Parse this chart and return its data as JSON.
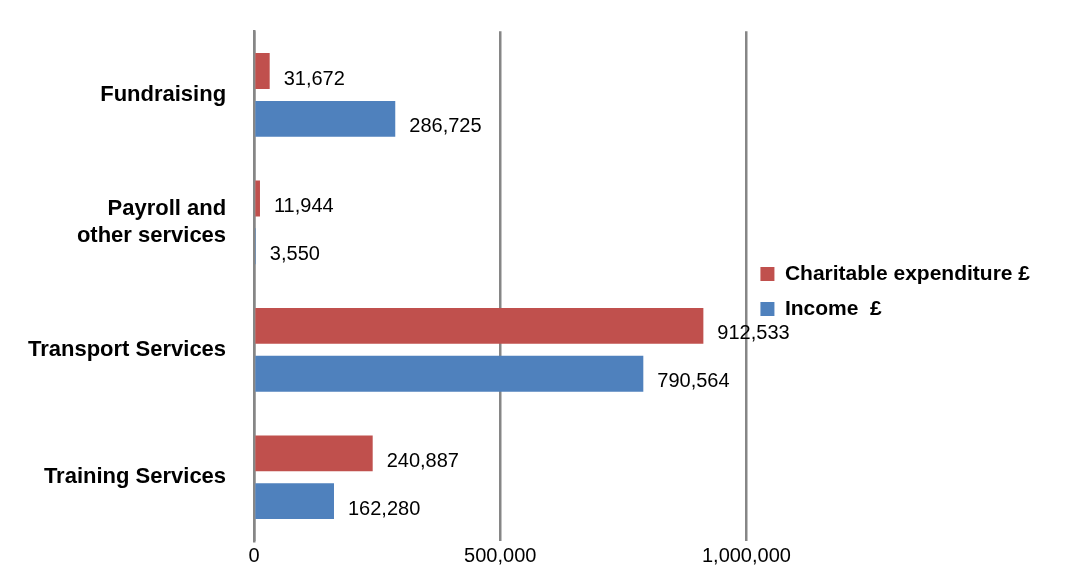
{
  "chart_data": {
    "type": "bar",
    "orientation": "horizontal",
    "categories": [
      "Fundraising",
      "Payroll and other services",
      "Transport Services",
      "Training Services"
    ],
    "series": [
      {
        "name": "Charitable expenditure £",
        "color": "#c0504d",
        "values": [
          31672,
          11944,
          912533,
          240887
        ],
        "value_labels": [
          "31,672",
          "11,944",
          "912,533",
          "240,887"
        ]
      },
      {
        "name": "Income  £",
        "color": "#4f81bd",
        "values": [
          286725,
          3550,
          790564,
          162280
        ],
        "value_labels": [
          "286,725",
          "3,550",
          "790,564",
          "162,280"
        ]
      }
    ],
    "xlim": [
      0,
      1000000
    ],
    "xticks": [
      0,
      {
        "value": 500000,
        "label": "500,000"
      },
      {
        "value": 1000000,
        "label": "1,000,000"
      }
    ],
    "grid": "x",
    "legend": "right"
  }
}
